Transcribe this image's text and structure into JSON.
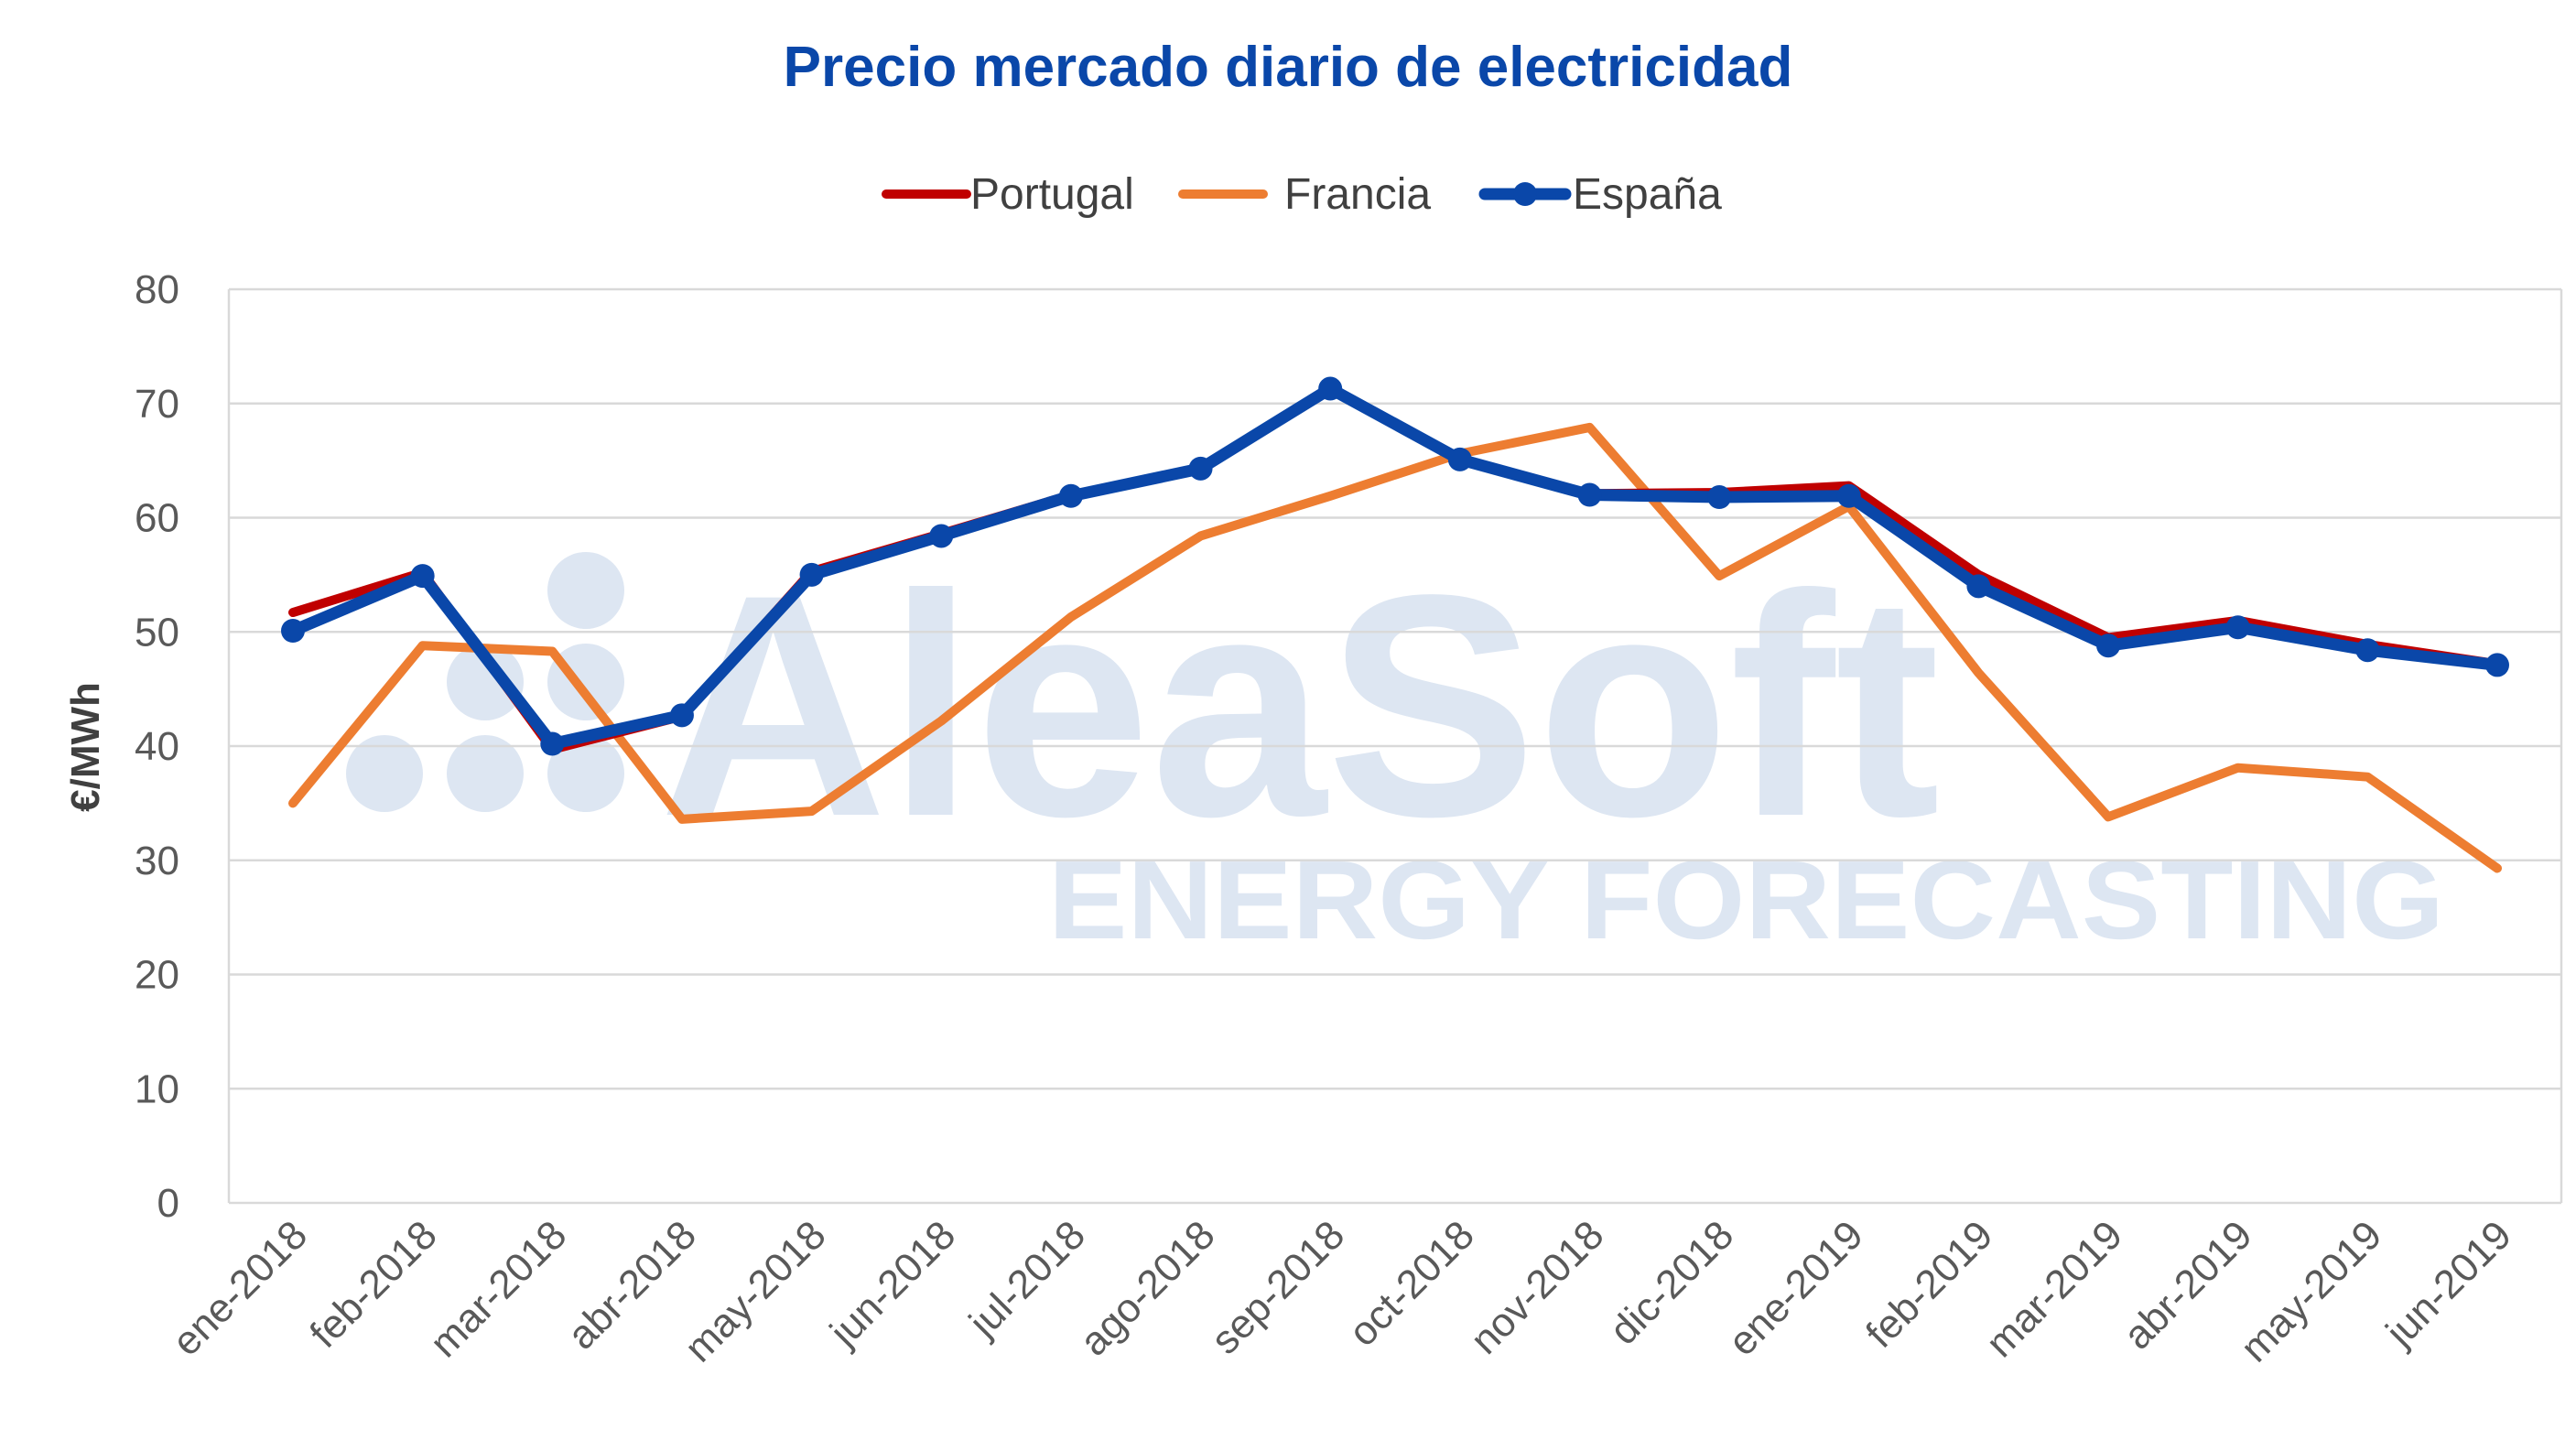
{
  "chart_data": {
    "type": "line",
    "title": "Precio mercado diario de electricidad",
    "ylabel": "€/MWh",
    "xlabel": "",
    "ylim": [
      0,
      80
    ],
    "yticks": [
      0,
      10,
      20,
      30,
      40,
      50,
      60,
      70,
      80
    ],
    "grid": true,
    "legend_position": "top",
    "categories": [
      "ene-2018",
      "feb-2018",
      "mar-2018",
      "abr-2018",
      "may-2018",
      "jun-2018",
      "jul-2018",
      "ago-2018",
      "sep-2018",
      "oct-2018",
      "nov-2018",
      "dic-2018",
      "ene-2019",
      "feb-2019",
      "mar-2019",
      "abr-2019",
      "may-2019",
      "jun-2019"
    ],
    "series": [
      {
        "name": "Portugal",
        "color": "#c00000",
        "markers": false,
        "values": [
          51.7,
          55.2,
          39.7,
          42.6,
          55.3,
          58.6,
          62.0,
          64.3,
          71.3,
          65.1,
          62.1,
          62.2,
          62.8,
          55.0,
          49.5,
          51.0,
          48.9,
          47.2
        ]
      },
      {
        "name": "Francia",
        "color": "#ed7d31",
        "markers": false,
        "values": [
          35.0,
          48.8,
          48.3,
          33.6,
          34.3,
          42.2,
          51.3,
          58.4,
          61.9,
          65.6,
          67.9,
          54.9,
          61.0,
          46.4,
          33.8,
          38.1,
          37.3,
          29.3
        ]
      },
      {
        "name": "España",
        "color": "#0a47a9",
        "markers": true,
        "values": [
          50.1,
          54.9,
          40.2,
          42.7,
          55.0,
          58.4,
          61.9,
          64.3,
          71.3,
          65.1,
          62.0,
          61.8,
          61.9,
          54.0,
          48.8,
          50.4,
          48.4,
          47.1
        ]
      }
    ]
  },
  "watermark": {
    "brand": "AleaSoft",
    "tagline": "ENERGY FORECASTING",
    "color": "#dde6f2"
  }
}
